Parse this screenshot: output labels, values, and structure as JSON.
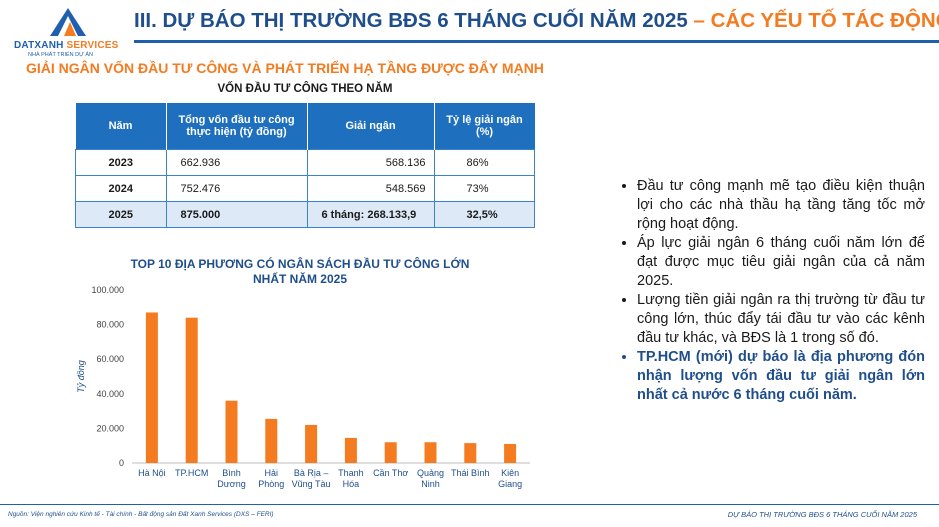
{
  "logo": {
    "brand_main": "DATXANH",
    "brand_accent": "SERVICES",
    "tagline": "NHÀ PHÁT TRIỂN DỰ ÁN"
  },
  "header": {
    "title_main": "III. DỰ BÁO THỊ TRƯỜNG BĐS 6 THÁNG CUỐI NĂM 2025",
    "title_accent": " – CÁC YẾU TỐ TÁC ĐỘNG"
  },
  "subtitle": "GIẢI NGÂN VỐN ĐẦU TƯ CÔNG VÀ PHÁT TRIỂN HẠ TẦNG ĐƯỢC ĐẨY MẠNH",
  "table": {
    "title": "VỐN ĐẦU TƯ CÔNG THEO NĂM",
    "headers": [
      "Năm",
      "Tổng vốn đầu tư công thực hiện (tỷ đồng)",
      "Giải ngân",
      "Tỷ lệ giải ngân (%)"
    ],
    "rows": [
      [
        "2023",
        "662.936",
        "568.136",
        "86%"
      ],
      [
        "2024",
        "752.476",
        "548.569",
        "73%"
      ],
      [
        "2025",
        "875.000",
        "6 tháng: 268.133,9",
        "32,5%"
      ]
    ]
  },
  "chart_data": {
    "type": "bar",
    "title": "TOP 10 ĐỊA PHƯƠNG CÓ NGÂN SÁCH ĐẦU TƯ CÔNG LỚN NHẤT NĂM 2025",
    "ylabel": "Tỷ đồng",
    "xlabel": "",
    "categories": [
      "Hà Nội",
      "TP.HCM",
      "Bình Dương",
      "Hải Phòng",
      "Bà Rịa – Vũng Tàu",
      "Thanh Hóa",
      "Cần Thơ",
      "Quảng Ninh",
      "Thái Bình",
      "Kiên Giang"
    ],
    "category_lines": [
      [
        "Hà Nội"
      ],
      [
        "TP.HCM"
      ],
      [
        "Bình",
        "Dương"
      ],
      [
        "Hải",
        "Phòng"
      ],
      [
        "Bà Rịa –",
        "Vũng Tàu"
      ],
      [
        "Thanh",
        "Hóa"
      ],
      [
        "Cần Thơ"
      ],
      [
        "Quảng",
        "Ninh"
      ],
      [
        "Thái Bình"
      ],
      [
        "Kiên",
        "Giang"
      ]
    ],
    "values": [
      87000,
      84000,
      36000,
      25500,
      22000,
      14500,
      12000,
      12000,
      11500,
      11000
    ],
    "ylim": [
      0,
      100000
    ],
    "yticks": [
      0,
      20000,
      40000,
      60000,
      80000,
      100000
    ],
    "ytick_labels": [
      "0",
      "20.000",
      "40.000",
      "60.000",
      "80.000",
      "100.000"
    ],
    "bar_color": "#f47b20",
    "grid": false,
    "legend": "none"
  },
  "bullets": [
    {
      "text": "Đầu tư công mạnh mẽ tạo điều kiện thuận lợi cho các nhà thầu hạ tầng tăng tốc mở rộng hoạt động.",
      "bold": false
    },
    {
      "text": "Áp lực giải ngân 6 tháng cuối năm lớn để đạt được mục tiêu giải ngân của cả năm 2025.",
      "bold": false
    },
    {
      "text": "Lượng tiền giải ngân ra thị trường từ đầu tư công lớn, thúc đẩy tái đầu tư vào các kênh đầu tư khác, và BĐS là 1 trong số đó.",
      "bold": false
    },
    {
      "text": "TP.HCM (mới) dự báo là địa phương đón nhận lượng vốn đầu tư giải ngân lớn nhất cả nước 6 tháng cuối năm.",
      "bold": true
    }
  ],
  "footer": {
    "source": "Nguồn: Viện nghiên cứu Kinh tế - Tài chính - Bất động sản Đất Xanh Services (DXS – FERI)",
    "right": "DỰ BÁO THỊ TRƯỜNG BĐS 6 THÁNG CUỐI NĂM 2025"
  },
  "colors": {
    "primary": "#1f5fae",
    "accent": "#f47b20",
    "table_header": "#1f6fbf",
    "table_highlight": "#dde9f6"
  }
}
